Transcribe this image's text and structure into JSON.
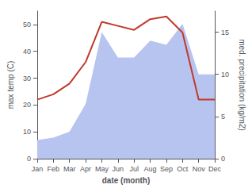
{
  "chart_data": {
    "type": "line",
    "xlabel": "date (month)",
    "ylabel": "max temp (C)",
    "y2label": "med. precipitation (kg/m2)",
    "categories": [
      "Jan",
      "Feb",
      "Mar",
      "Apr",
      "May",
      "Jun",
      "Jul",
      "Aug",
      "Sep",
      "Oct",
      "Nov",
      "Dec"
    ],
    "series": [
      {
        "type": "area",
        "axis": "y2",
        "color": "#b8c4f0",
        "values": [
          2.2,
          2.5,
          3.2,
          6.5,
          15,
          12,
          12,
          14,
          13.5,
          16,
          10,
          10
        ]
      },
      {
        "type": "line",
        "color": "#c0392b",
        "values": [
          22,
          24,
          28,
          36,
          51,
          49.5,
          48,
          52,
          53,
          47,
          22,
          22
        ]
      }
    ],
    "ylim": [
      0,
      55
    ],
    "yticks": [
      0,
      10,
      20,
      30,
      40,
      50
    ],
    "y2lim": [
      0,
      17.5
    ],
    "y2ticks": [
      0,
      5,
      10,
      15
    ],
    "grid": false
  }
}
